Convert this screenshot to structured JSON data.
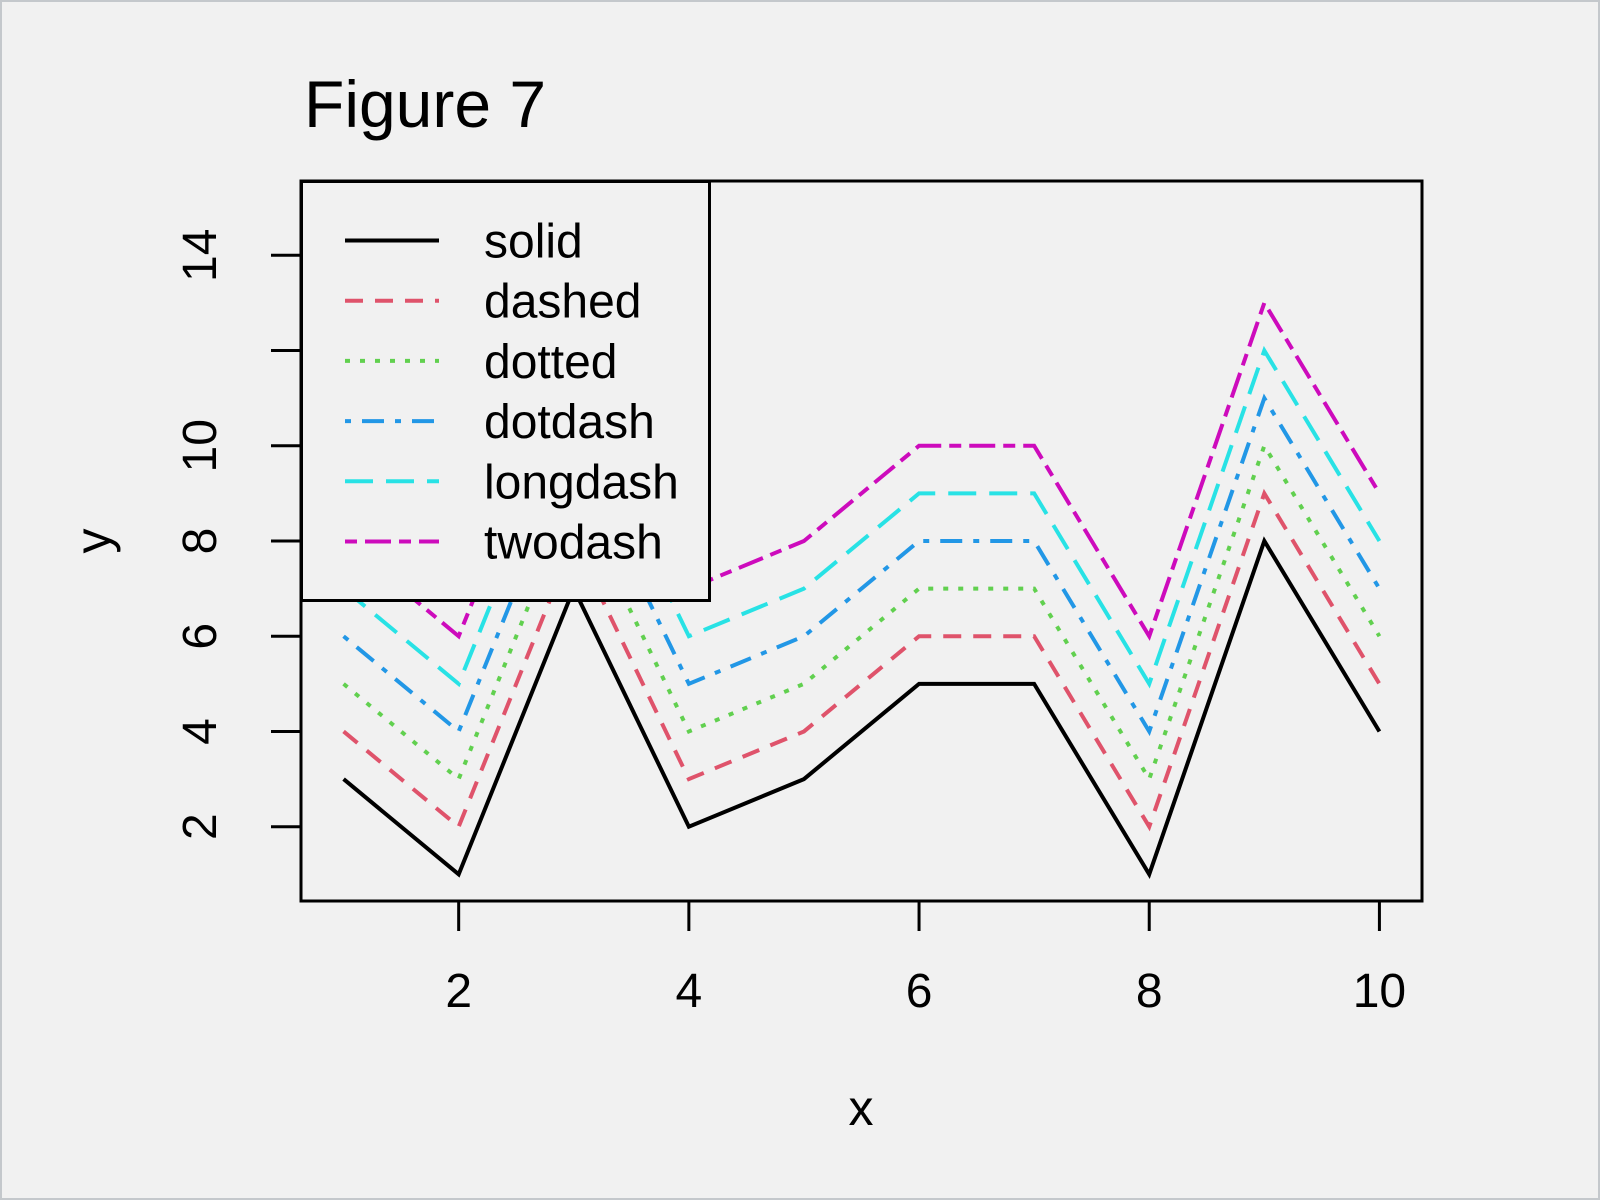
{
  "chart_data": {
    "type": "line",
    "title": "Figure 7",
    "xlabel": "x",
    "ylabel": "y",
    "x": [
      1,
      2,
      3,
      4,
      5,
      6,
      7,
      8,
      9,
      10
    ],
    "series": [
      {
        "name": "solid",
        "linetype": "solid",
        "color": "#000000",
        "values": [
          3,
          1,
          7,
          2,
          3,
          5,
          5,
          1,
          8,
          4
        ]
      },
      {
        "name": "dashed",
        "linetype": "dashed",
        "color": "#DF536B",
        "values": [
          4,
          2,
          8,
          3,
          4,
          6,
          6,
          2,
          9,
          5
        ]
      },
      {
        "name": "dotted",
        "linetype": "dotted",
        "color": "#61D04F",
        "values": [
          5,
          3,
          9,
          4,
          5,
          7,
          7,
          3,
          10,
          6
        ]
      },
      {
        "name": "dotdash",
        "linetype": "dotdash",
        "color": "#2297E6",
        "values": [
          6,
          4,
          10,
          5,
          6,
          8,
          8,
          4,
          11,
          7
        ]
      },
      {
        "name": "longdash",
        "linetype": "longdash",
        "color": "#28E2E5",
        "values": [
          7,
          5,
          11,
          6,
          7,
          9,
          9,
          5,
          12,
          8
        ]
      },
      {
        "name": "twodash",
        "linetype": "twodash",
        "color": "#CD0BBC",
        "values": [
          8,
          6,
          12,
          7,
          8,
          10,
          10,
          6,
          13,
          9
        ]
      }
    ],
    "axes": {
      "x_range": [
        0.63,
        10.37
      ],
      "y_range": [
        0.44,
        15.56
      ],
      "x_ticks": [
        {
          "value": 2,
          "label": "2"
        },
        {
          "value": 4,
          "label": "4"
        },
        {
          "value": 6,
          "label": "6"
        },
        {
          "value": 8,
          "label": "8"
        },
        {
          "value": 10,
          "label": "10"
        }
      ],
      "y_ticks": [
        {
          "value": 2,
          "label": "2"
        },
        {
          "value": 4,
          "label": "4"
        },
        {
          "value": 6,
          "label": "6"
        },
        {
          "value": 8,
          "label": "8"
        },
        {
          "value": 10,
          "label": "10"
        },
        {
          "value": 12,
          "label": ""
        },
        {
          "value": 14,
          "label": "14"
        }
      ],
      "grid": "off"
    },
    "legend": {
      "position": "topleft",
      "entries": [
        "solid",
        "dashed",
        "dotted",
        "dotdash",
        "longdash",
        "twodash"
      ]
    },
    "colors": {
      "background": "#f1f1f1",
      "foreground": "#000000"
    }
  }
}
